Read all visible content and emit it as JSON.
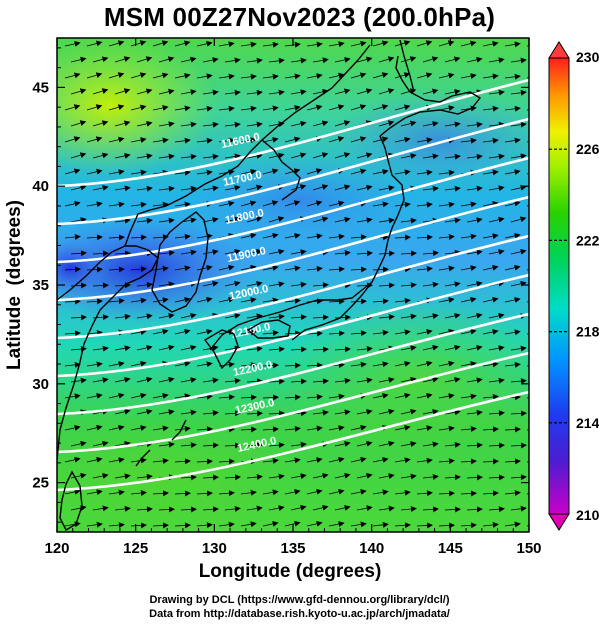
{
  "title": "MSM 00Z27Nov2023 (200.0hPa)",
  "xaxis": {
    "label": "Longitude (degrees)",
    "min": 120,
    "max": 150,
    "ticks": [
      "120",
      "125",
      "130",
      "135",
      "140",
      "145",
      "150"
    ]
  },
  "yaxis": {
    "label": "Latitude  (degrees)",
    "min": 22.5,
    "max": 47.5,
    "ticks": [
      "25",
      "30",
      "35",
      "40",
      "45"
    ]
  },
  "colorbar": {
    "min": 210,
    "max": 230,
    "ticks": [
      "210",
      "214",
      "218",
      "222",
      "226",
      "230"
    ],
    "colors": [
      "#c800c8",
      "#1e1ed2",
      "#00a0ff",
      "#00e6b4",
      "#00d200",
      "#8cf000",
      "#f0f000",
      "#ff8c00",
      "#ff1e1e"
    ]
  },
  "contours": [
    {
      "label": "11600.0"
    },
    {
      "label": "11700.0"
    },
    {
      "label": "11800.0"
    },
    {
      "label": "11900.0"
    },
    {
      "label": "12000.0"
    },
    {
      "label": "12100.0"
    },
    {
      "label": "12200.0"
    },
    {
      "label": "12300.0"
    },
    {
      "label": "12400.0"
    }
  ],
  "credits": {
    "line1": "Drawing by DCL (https://www.gfd-dennou.org/library/dcl/)",
    "line2": "Data from http://database.rish.kyoto-u.ac.jp/arch/jmadata/"
  }
}
